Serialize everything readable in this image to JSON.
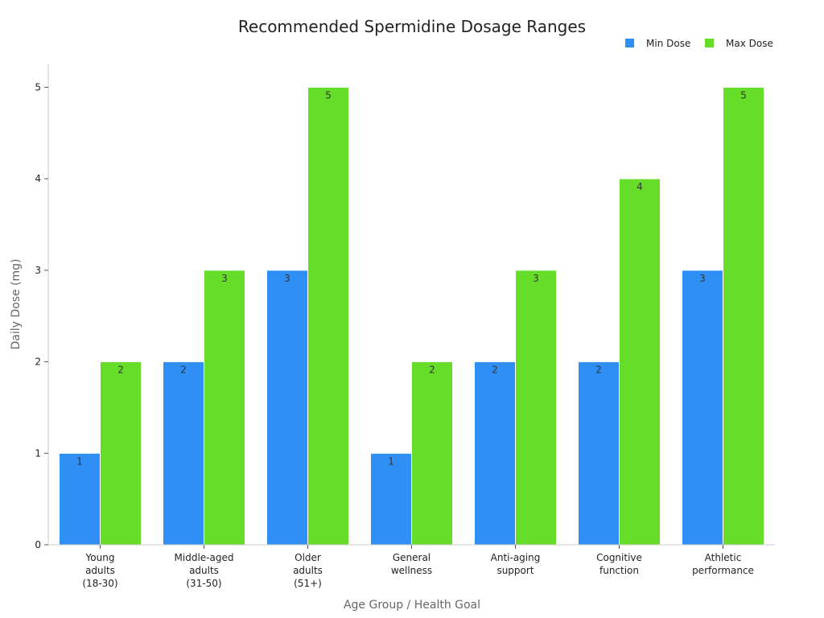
{
  "chart_data": {
    "type": "bar",
    "title": "Recommended Spermidine Dosage Ranges",
    "xlabel": "Age Group / Health Goal",
    "ylabel": "Daily Dose (mg)",
    "ylim": [
      0,
      5.25
    ],
    "yticks": [
      0,
      1,
      2,
      3,
      4,
      5
    ],
    "legend_position": "top-right",
    "categories": [
      [
        "Young",
        "adults",
        "(18-30)"
      ],
      [
        "Middle-aged",
        "adults",
        "(31-50)"
      ],
      [
        "Older",
        "adults",
        "(51+)"
      ],
      [
        "General",
        "wellness"
      ],
      [
        "Anti-aging",
        "support"
      ],
      [
        "Cognitive",
        "function"
      ],
      [
        "Athletic",
        "performance"
      ]
    ],
    "series": [
      {
        "name": "Min Dose",
        "color": "#2f8ff5",
        "values": [
          1,
          2,
          3,
          1,
          2,
          2,
          3
        ]
      },
      {
        "name": "Max Dose",
        "color": "#66dd29",
        "values": [
          2,
          3,
          5,
          2,
          3,
          4,
          5
        ]
      }
    ]
  }
}
